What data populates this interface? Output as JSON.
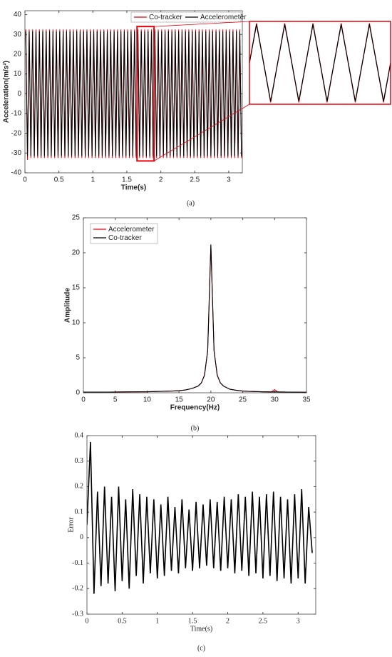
{
  "chart_data": [
    {
      "type": "line",
      "caption": "(a)",
      "x_label": "Time(s)",
      "y_label": "Acceleration(m/s²)",
      "xlim": [
        0,
        3.2
      ],
      "ylim": [
        -40,
        42
      ],
      "xticks": [
        0,
        0.5,
        1,
        1.5,
        2,
        2.5,
        3
      ],
      "yticks": [
        -40,
        -30,
        -20,
        -10,
        0,
        10,
        20,
        30,
        40
      ],
      "legend": "upper right",
      "inset": {
        "xlim": [
          1.65,
          1.9
        ],
        "ylim": [
          -34,
          34
        ],
        "color": "#e8000b"
      },
      "x": [
        0.0125,
        0.0375,
        0.0625,
        0.0875,
        0.1125,
        0.1375,
        0.1625,
        0.1875,
        0.2125,
        0.2375,
        0.2625,
        0.2875,
        0.3125,
        0.3375,
        0.3625,
        0.3875,
        0.4125,
        0.4375,
        0.4625,
        0.4875,
        0.5125,
        0.5375,
        0.5625,
        0.5875,
        0.6125,
        0.6375,
        0.6625,
        0.6875,
        0.7125,
        0.7375,
        0.7625,
        0.7875,
        0.8125,
        0.8375,
        0.8625,
        0.8875,
        0.9125,
        0.9375,
        0.9625,
        0.9875,
        1.0125,
        1.0375,
        1.0625,
        1.0875,
        1.1125,
        1.1375,
        1.1625,
        1.1875,
        1.2125,
        1.2375,
        1.2625,
        1.2875,
        1.3125,
        1.3375,
        1.3625,
        1.3875,
        1.4125,
        1.4375,
        1.4625,
        1.4875,
        1.5125,
        1.5375,
        1.5625,
        1.5875,
        1.6125,
        1.6375,
        1.6625,
        1.6875,
        1.7125,
        1.7375,
        1.7625,
        1.7875,
        1.8125,
        1.8375,
        1.8625,
        1.8875,
        1.9125,
        1.9375,
        1.9625,
        1.9875,
        2.0125,
        2.0375,
        2.0625,
        2.0875,
        2.1125,
        2.1375,
        2.1625,
        2.1875,
        2.2125,
        2.2375,
        2.2625,
        2.2875,
        2.3125,
        2.3375,
        2.3625,
        2.3875,
        2.4125,
        2.4375,
        2.4625,
        2.4875,
        2.5125,
        2.5375,
        2.5625,
        2.5875,
        2.6125,
        2.6375,
        2.6625,
        2.6875,
        2.7125,
        2.7375,
        2.7625,
        2.7875,
        2.8125,
        2.8375,
        2.8625,
        2.8875,
        2.9125,
        2.9375,
        2.9625,
        2.9875,
        3.0125,
        3.0375,
        3.0625,
        3.0875,
        3.1125,
        3.1375,
        3.1625,
        3.1875
      ],
      "series": [
        {
          "name": "Co-tracker",
          "color": "#e8000b",
          "values": [
            32.5,
            -33.5,
            32.5,
            -32.5,
            32.5,
            -32.5,
            32.5,
            -32.5,
            32.5,
            -32.5,
            32.5,
            -32.5,
            32.5,
            -32.5,
            32.5,
            -32.5,
            32.5,
            -32.5,
            32.5,
            -32.5,
            32.5,
            -32.5,
            32.5,
            -32.5,
            32.5,
            -32.5,
            32.5,
            -32.5,
            32.5,
            -32.5,
            32.5,
            -32.5,
            32.5,
            -32.5,
            32.5,
            -32.5,
            32.5,
            -32.5,
            32.5,
            -32.5,
            32.5,
            -32.5,
            32.5,
            -32.5,
            32.5,
            -32.5,
            32.5,
            -32.5,
            32.5,
            -32.5,
            32.5,
            -32.5,
            32.5,
            -32.5,
            32.5,
            -32.5,
            32.5,
            -32.5,
            32.5,
            -32.5,
            32.5,
            -32.5,
            32.5,
            -32.5,
            32.5,
            -32.5,
            32.5,
            -32.5,
            32.5,
            -32.5,
            32.5,
            -32.5,
            32.5,
            -32.5,
            32.5,
            -32.5,
            32.5,
            -32.5,
            32.5,
            -32.5,
            32.5,
            -32.5,
            32.5,
            -32.5,
            32.5,
            -32.5,
            32.5,
            -32.5,
            32.5,
            -32.5,
            32.5,
            -32.5,
            32.5,
            -32.5,
            32.5,
            -32.5,
            32.5,
            -32.5,
            32.5,
            -32.5,
            32.5,
            -32.5,
            32.5,
            -32.5,
            32.5,
            -32.5,
            32.5,
            -32.5,
            32.5,
            -32.5,
            32.5,
            -32.5,
            32.5,
            -32.5,
            32.5,
            -32.5,
            32.5,
            -32.5,
            32.5,
            -32.5,
            32.5,
            -32.5,
            32.5,
            -32.5,
            32.5,
            -32.5,
            32.5,
            -32.5
          ]
        },
        {
          "name": "Accelerometer",
          "color": "#000000",
          "values": [
            31.5,
            -31.5,
            31.5,
            -31.5,
            31.5,
            -31.5,
            31.5,
            -31.5,
            31.5,
            -31.5,
            31.5,
            -31.5,
            31.5,
            -31.5,
            31.5,
            -31.5,
            31.5,
            -31.5,
            31.5,
            -31.5,
            31.5,
            -31.5,
            31.5,
            -31.5,
            31.5,
            -31.5,
            31.5,
            -31.5,
            31.5,
            -31.5,
            31.5,
            -31.5,
            31.5,
            -31.5,
            31.5,
            -31.5,
            31.5,
            -31.5,
            31.5,
            -31.5,
            31.5,
            -31.5,
            31.5,
            -31.5,
            31.5,
            -31.5,
            31.5,
            -31.5,
            31.5,
            -31.5,
            31.5,
            -31.5,
            31.5,
            -31.5,
            31.5,
            -31.5,
            31.5,
            -31.5,
            31.5,
            -31.5,
            31.5,
            -31.5,
            31.5,
            -31.5,
            31.5,
            -31.5,
            31.5,
            -31.5,
            31.5,
            -31.5,
            31.5,
            -31.5,
            31.5,
            -31.5,
            31.5,
            -31.5,
            31.5,
            -31.5,
            31.5,
            -31.5,
            31.5,
            -31.5,
            31.5,
            -31.5,
            31.5,
            -31.5,
            31.5,
            -31.5,
            31.5,
            -31.5,
            31.5,
            -31.5,
            31.5,
            -31.5,
            31.5,
            -31.5,
            31.5,
            -31.5,
            31.5,
            -31.5,
            31.5,
            -31.5,
            31.5,
            -31.5,
            31.5,
            -31.5,
            31.5,
            -31.5,
            31.5,
            -31.5,
            31.5,
            -31.5,
            31.5,
            -31.5,
            31.5,
            -31.5,
            31.5,
            -31.5,
            31.5,
            -31.5,
            31.5,
            -31.5,
            31.5,
            -31.5,
            31.5,
            -31.5,
            31.5,
            -31.5
          ]
        }
      ]
    },
    {
      "type": "line",
      "caption": "(b)",
      "x_label": "Frequency(Hz)",
      "y_label": "Amplitude",
      "xlim": [
        0,
        35
      ],
      "ylim": [
        0,
        25
      ],
      "xticks": [
        0,
        5,
        10,
        15,
        20,
        25,
        30,
        35
      ],
      "yticks": [
        0,
        5,
        10,
        15,
        20,
        25
      ],
      "legend": "upper left",
      "x": [
        0,
        2,
        4,
        6,
        8,
        10,
        12,
        14,
        15,
        16,
        17,
        18,
        18.5,
        19,
        19.5,
        20,
        20.5,
        21,
        21.5,
        22,
        23,
        24,
        25,
        26,
        28,
        29.5,
        30,
        30.5,
        32,
        34,
        35
      ],
      "series": [
        {
          "name": "Accelerometer",
          "color": "#e8000b",
          "values": [
            0.1,
            0.1,
            0.1,
            0.12,
            0.13,
            0.15,
            0.2,
            0.25,
            0.3,
            0.4,
            0.6,
            0.95,
            1.4,
            2.5,
            6,
            21,
            6,
            2.5,
            1.4,
            0.95,
            0.5,
            0.35,
            0.25,
            0.2,
            0.15,
            0.12,
            0.45,
            0.12,
            0.1,
            0.08,
            0.07
          ]
        },
        {
          "name": "Co-tracker",
          "color": "#000000",
          "values": [
            0.1,
            0.1,
            0.1,
            0.12,
            0.13,
            0.15,
            0.2,
            0.25,
            0.3,
            0.4,
            0.6,
            0.95,
            1.4,
            2.5,
            6,
            21.2,
            6,
            2.5,
            1.4,
            0.95,
            0.5,
            0.35,
            0.25,
            0.2,
            0.15,
            0.12,
            0.13,
            0.12,
            0.1,
            0.08,
            0.07
          ]
        }
      ]
    },
    {
      "type": "line",
      "caption": "(c)",
      "x_label": "Time(s)",
      "y_label": "Error",
      "xlim": [
        0,
        3.25
      ],
      "ylim": [
        -0.3,
        0.4
      ],
      "xticks": [
        0,
        0.5,
        1,
        1.5,
        2,
        2.5,
        3
      ],
      "yticks": [
        -0.3,
        -0.2,
        -0.1,
        0,
        0.1,
        0.2,
        0.3,
        0.4
      ],
      "x": [
        0,
        0.05,
        0.1,
        0.15,
        0.2,
        0.25,
        0.3,
        0.35,
        0.4,
        0.45,
        0.5,
        0.55,
        0.6,
        0.65,
        0.7,
        0.75,
        0.8,
        0.85,
        0.9,
        0.95,
        1,
        1.05,
        1.1,
        1.15,
        1.2,
        1.25,
        1.3,
        1.35,
        1.4,
        1.45,
        1.5,
        1.55,
        1.6,
        1.65,
        1.7,
        1.75,
        1.8,
        1.85,
        1.9,
        1.95,
        2,
        2.05,
        2.1,
        2.15,
        2.2,
        2.25,
        2.3,
        2.35,
        2.4,
        2.45,
        2.5,
        2.55,
        2.6,
        2.65,
        2.7,
        2.75,
        2.8,
        2.85,
        2.9,
        2.95,
        3,
        3.05,
        3.1,
        3.15,
        3.2
      ],
      "series": [
        {
          "color": "#000000",
          "values": [
            0.05,
            0.375,
            -0.22,
            0.18,
            -0.19,
            0.2,
            -0.18,
            0.16,
            -0.21,
            0.2,
            -0.17,
            0.15,
            -0.2,
            0.19,
            -0.15,
            0.17,
            -0.18,
            0.16,
            -0.14,
            0.15,
            -0.16,
            0.13,
            -0.15,
            0.16,
            -0.13,
            0.12,
            -0.14,
            0.15,
            -0.12,
            0.11,
            -0.13,
            0.14,
            -0.12,
            0.13,
            -0.11,
            0.15,
            -0.12,
            0.14,
            -0.13,
            0.16,
            -0.12,
            0.15,
            -0.14,
            0.17,
            -0.13,
            0.16,
            -0.15,
            0.18,
            -0.14,
            0.16,
            -0.16,
            0.17,
            -0.15,
            0.18,
            -0.17,
            0.16,
            -0.16,
            0.15,
            -0.18,
            0.17,
            -0.16,
            0.19,
            -0.18,
            0.12,
            -0.06
          ]
        }
      ]
    }
  ]
}
